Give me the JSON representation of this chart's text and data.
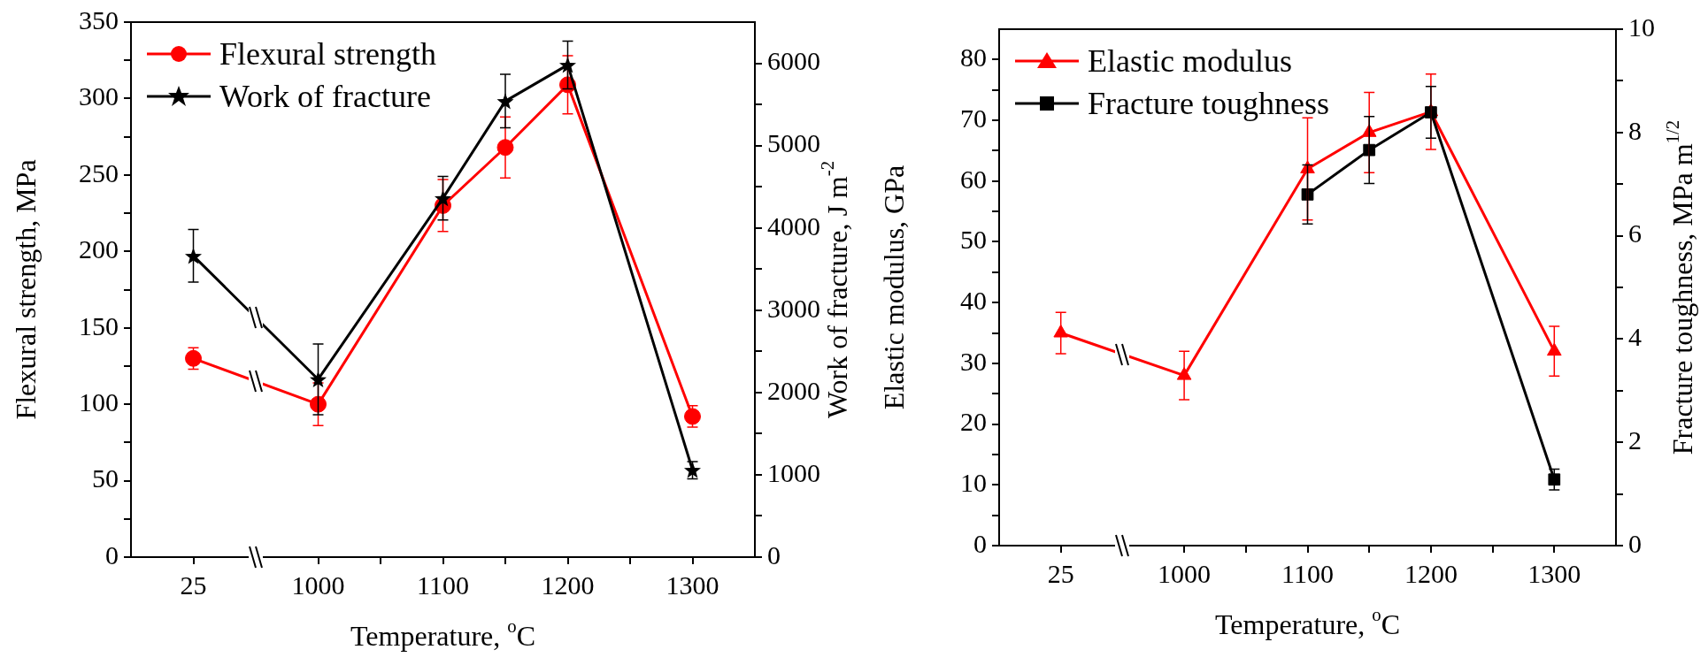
{
  "chart_data": [
    {
      "type": "line",
      "xlabel": "Temperature, $^{o}$C",
      "ylabel": "Flexural strength, MPa",
      "y2label": "Work of fracture, J m$^{-2}$",
      "categories": [
        "25",
        null,
        "1000",
        null,
        "1100",
        null,
        "1200",
        null,
        "1300"
      ],
      "series": [
        {
          "name": "Flexural strength",
          "color": "#ff0000",
          "marker": "circle",
          "values": [
            130,
            null,
            100,
            null,
            230,
            268,
            309,
            null,
            92
          ],
          "errors": [
            7,
            null,
            14,
            null,
            17,
            20,
            19,
            null,
            7
          ]
        },
        {
          "name": "Work of fracture",
          "color": "#000000",
          "marker": "star",
          "axis": "y2",
          "values": [
            3660,
            null,
            2160,
            null,
            4360,
            5540,
            5980,
            null,
            1060
          ],
          "errors": [
            320,
            null,
            430,
            null,
            265,
            325,
            290,
            null,
            [
              950,
              1160
            ]
          ]
        }
      ],
      "ylim": [
        0,
        350
      ],
      "yticks": [
        0,
        {
          "value": 25,
          "label": null
        },
        50,
        {
          "value": 75,
          "label": null
        },
        100,
        {
          "value": 125,
          "label": null
        },
        150,
        {
          "value": 175,
          "label": null
        },
        200,
        {
          "value": 225,
          "label": null
        },
        250,
        {
          "value": 275,
          "label": null
        },
        300,
        {
          "value": 325,
          "label": null
        },
        350
      ],
      "y2lim": [
        0,
        6500
      ],
      "y2ticks": [
        0,
        {
          "value": 500,
          "label": null
        },
        1000,
        {
          "value": 1500,
          "label": null
        },
        2000,
        {
          "value": 2500,
          "label": null
        },
        3000,
        {
          "value": 3500,
          "label": null
        },
        4000,
        {
          "value": 4500,
          "label": null
        },
        5000,
        {
          "value": 5500,
          "label": null
        },
        6000
      ],
      "legend": "top left",
      "grid": false
    },
    {
      "type": "line",
      "xlabel": "Temperature, $^{o}$C",
      "ylabel": "Elastic modulus, GPa",
      "y2label": "Fracture toughness, MPa m$^{1/2}$",
      "categories": [
        "25",
        null,
        "1000",
        null,
        "1100",
        null,
        "1200",
        null,
        "1300"
      ],
      "series": [
        {
          "name": "Elastic modulus",
          "color": "#ff0000",
          "marker": "triangle",
          "values": [
            35,
            null,
            28,
            null,
            62,
            68,
            71.4,
            null,
            32
          ],
          "errors": [
            3.4,
            null,
            4,
            null,
            8.4,
            6.6,
            6.2,
            null,
            4.1
          ]
        },
        {
          "name": "Fracture toughness",
          "color": "#000000",
          "marker": "square",
          "axis": "y2",
          "values": [
            null,
            null,
            null,
            null,
            6.8,
            7.66,
            8.39,
            null,
            1.28
          ],
          "errors": [
            null,
            null,
            null,
            null,
            0.57,
            0.65,
            0.5,
            null,
            0.2
          ]
        }
      ],
      "ylim": [
        0,
        85
      ],
      "yticks": [
        0,
        {
          "value": 5,
          "label": null
        },
        10,
        {
          "value": 15,
          "label": null
        },
        20,
        {
          "value": 25,
          "label": null
        },
        30,
        {
          "value": 35,
          "label": null
        },
        40,
        {
          "value": 45,
          "label": null
        },
        50,
        {
          "value": 55,
          "label": null
        },
        60,
        {
          "value": 65,
          "label": null
        },
        70,
        {
          "value": 75,
          "label": null
        },
        80
      ],
      "y2lim": [
        0,
        10
      ],
      "y2ticks": [
        0,
        {
          "value": 1,
          "label": null
        },
        2,
        {
          "value": 3,
          "label": null
        },
        4,
        {
          "value": 5,
          "label": null
        },
        6,
        {
          "value": 7,
          "label": null
        },
        8,
        {
          "value": 9,
          "label": null
        },
        10
      ],
      "legend": "top left",
      "grid": false
    }
  ]
}
